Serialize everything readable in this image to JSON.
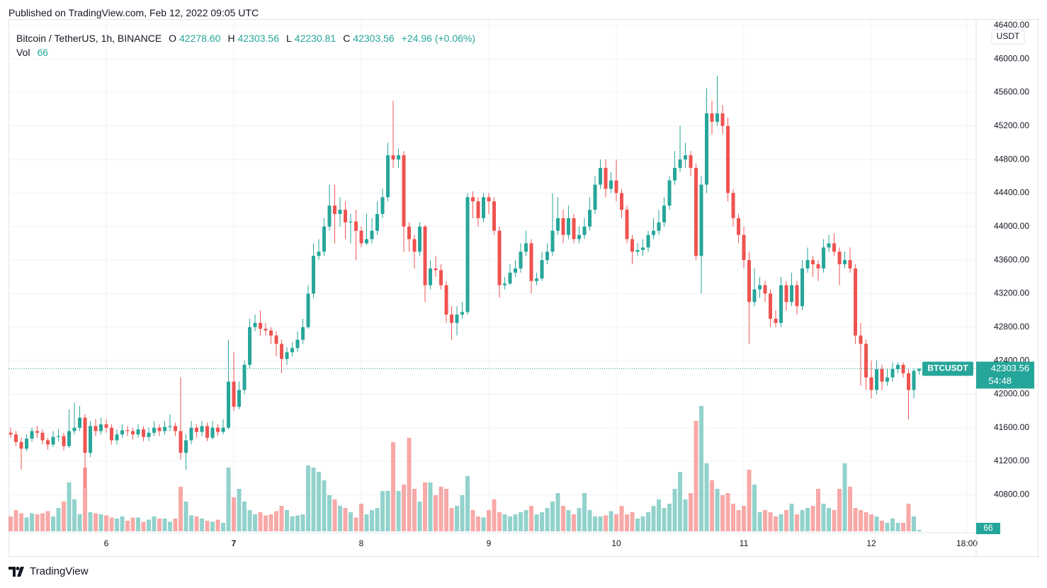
{
  "header": {
    "published": "Published on TradingView.com, Feb 12, 2022 09:05 UTC",
    "symbol": "Bitcoin / TetherUS, 1h, BINANCE",
    "open_label": "O",
    "open": "42278.60",
    "high_label": "H",
    "high": "42303.56",
    "low_label": "L",
    "low": "42230.81",
    "close_label": "C",
    "close": "42303.56",
    "change": "+24.96 (+0.06%)",
    "vol_label": "Vol",
    "vol": "66"
  },
  "footer": {
    "brand": "TradingView"
  },
  "chart_data": {
    "type": "candlestick",
    "currency": "USDT",
    "symbol_tag": "BTCUSDT",
    "countdown": "54:48",
    "up_color": "#26a69a",
    "down_color": "#ef5350",
    "grid": true,
    "open": [
      41540,
      41520,
      41430,
      41350,
      41470,
      41560,
      41540,
      41450,
      41400,
      41490,
      41500,
      41380,
      41560,
      41600,
      41720,
      41300,
      41620,
      41560,
      41640,
      41600,
      41450,
      41520,
      41570,
      41560,
      41520,
      41580,
      41490,
      41540,
      41600,
      41560,
      41610,
      41620,
      41560,
      41300,
      41450,
      41600,
      41550,
      41620,
      41480,
      41600,
      41550,
      41600,
      42150,
      41850,
      42050,
      42350,
      42800,
      42850,
      42780,
      42760,
      42700,
      42600,
      42420,
      42500,
      42550,
      42650,
      42800,
      43200,
      43650,
      43700,
      44000,
      44250,
      44150,
      44200,
      44050,
      44060,
      43950,
      43800,
      43850,
      43950,
      44150,
      44350,
      44850,
      44800,
      44850,
      44000,
      43850,
      43700,
      44000,
      43300,
      43500,
      43480,
      43300,
      42950,
      42850,
      42950,
      42980,
      44350,
      44300,
      44100,
      44350,
      44300,
      43950,
      43300,
      43320,
      43450,
      43500,
      43700,
      43800,
      43350,
      43380,
      43600,
      43700,
      43950,
      44100,
      43900,
      44100,
      43850,
      43900,
      44000,
      44200,
      44500,
      44700,
      44450,
      44550,
      44400,
      44200,
      43850,
      43700,
      43720,
      43750,
      43900,
      43950,
      44050,
      44250,
      44550,
      44700,
      44800,
      44850,
      44700,
      43650,
      44500,
      45350,
      45250,
      45350,
      45200,
      44400,
      44100,
      43900,
      43600,
      43100,
      43250,
      43300,
      43200,
      42900,
      42850,
      43300,
      43100,
      43300,
      43050,
      43500,
      43600,
      43550,
      43500,
      43750,
      43800,
      43700,
      43550,
      43600,
      43500,
      42700,
      42600,
      42200,
      42050,
      42300,
      42150,
      42200,
      42300,
      42350,
      42250,
      42050,
      42278.6
    ],
    "high": [
      41600,
      41560,
      41480,
      41520,
      41600,
      41620,
      41580,
      41480,
      41560,
      41580,
      41540,
      41820,
      41900,
      41860,
      41760,
      41680,
      41700,
      41720,
      41700,
      41640,
      41580,
      41640,
      41620,
      41600,
      41640,
      41620,
      41600,
      41680,
      41640,
      41680,
      41760,
      41660,
      42200,
      41520,
      41680,
      41640,
      41680,
      41660,
      41680,
      41640,
      41700,
      42650,
      42500,
      42150,
      42400,
      42900,
      42950,
      43000,
      42850,
      42800,
      42750,
      42650,
      42560,
      42620,
      42750,
      42900,
      43300,
      43800,
      43850,
      44100,
      44500,
      44500,
      44350,
      44300,
      44150,
      44200,
      44000,
      44150,
      44100,
      44300,
      44450,
      45000,
      45500,
      44930,
      44900,
      44050,
      43900,
      44050,
      44020,
      43600,
      43650,
      43550,
      43350,
      43050,
      43050,
      43100,
      44400,
      44420,
      44350,
      44400,
      44400,
      44350,
      44000,
      43400,
      43550,
      43600,
      43800,
      43950,
      43850,
      43450,
      43700,
      43800,
      44400,
      44350,
      44200,
      44250,
      44150,
      44000,
      44100,
      44350,
      44600,
      44800,
      44800,
      44650,
      44800,
      44450,
      44250,
      43900,
      43800,
      43850,
      43950,
      44100,
      44200,
      44350,
      44600,
      44900,
      45200,
      45000,
      44900,
      44750,
      44600,
      45650,
      45500,
      45800,
      45450,
      45300,
      44450,
      44150,
      44000,
      43700,
      43500,
      43400,
      43350,
      43250,
      43000,
      43400,
      43350,
      43450,
      43350,
      43600,
      43750,
      43650,
      43600,
      43850,
      43900,
      43920,
      43750,
      43700,
      43750,
      43550,
      42850,
      42650,
      42400,
      42400,
      42350,
      42300,
      42380,
      42380,
      42380,
      42300,
      42300,
      42303.56
    ],
    "low": [
      41480,
      41380,
      41100,
      41320,
      41430,
      41480,
      41400,
      41340,
      41370,
      41440,
      41330,
      41360,
      41520,
      41560,
      40880,
      41250,
      41500,
      41520,
      41540,
      41400,
      41400,
      41480,
      41500,
      41460,
      41480,
      41440,
      41440,
      41500,
      41500,
      41520,
      41560,
      41500,
      41220,
      41100,
      41400,
      41480,
      41500,
      41440,
      41460,
      41500,
      41520,
      41580,
      41800,
      41820,
      42000,
      42300,
      42750,
      42700,
      42700,
      42600,
      42450,
      42250,
      42350,
      42450,
      42500,
      42600,
      42780,
      43150,
      43600,
      43650,
      43950,
      43800,
      44000,
      43850,
      43800,
      43600,
      43750,
      43780,
      43800,
      43900,
      44100,
      44300,
      44700,
      44700,
      43700,
      43700,
      43500,
      43650,
      43100,
      43250,
      43400,
      43250,
      42850,
      42650,
      42700,
      42900,
      42950,
      44100,
      44000,
      44050,
      44150,
      43900,
      43150,
      43250,
      43300,
      43400,
      43450,
      43650,
      43200,
      43300,
      43350,
      43550,
      43650,
      43900,
      43800,
      43850,
      43800,
      43800,
      43850,
      43950,
      44150,
      44450,
      44350,
      44400,
      44300,
      44100,
      43800,
      43550,
      43650,
      43650,
      43700,
      43850,
      43900,
      44000,
      44200,
      44500,
      44650,
      44700,
      44600,
      43600,
      43200,
      44400,
      45100,
      45200,
      45100,
      44300,
      44000,
      43800,
      43500,
      42600,
      43050,
      43150,
      43100,
      42800,
      42800,
      42800,
      43000,
      43050,
      42950,
      43000,
      43450,
      43400,
      43350,
      43450,
      43700,
      43650,
      43300,
      43500,
      43450,
      42600,
      42100,
      42050,
      41950,
      42000,
      42050,
      42100,
      42150,
      42250,
      42200,
      41700,
      41950,
      42230.81
    ],
    "close": [
      41520,
      41430,
      41350,
      41470,
      41560,
      41540,
      41450,
      41400,
      41490,
      41500,
      41380,
      41560,
      41600,
      41720,
      41300,
      41620,
      41560,
      41640,
      41600,
      41450,
      41520,
      41570,
      41560,
      41520,
      41580,
      41490,
      41540,
      41600,
      41560,
      41610,
      41620,
      41560,
      41300,
      41450,
      41600,
      41550,
      41620,
      41480,
      41600,
      41550,
      41600,
      42150,
      41850,
      42050,
      42350,
      42800,
      42850,
      42780,
      42760,
      42700,
      42600,
      42420,
      42500,
      42550,
      42650,
      42800,
      43200,
      43650,
      43700,
      44000,
      44250,
      44150,
      44200,
      44050,
      44060,
      43950,
      43800,
      43850,
      43950,
      44150,
      44350,
      44850,
      44800,
      44850,
      44000,
      43850,
      43700,
      44000,
      43300,
      43500,
      43480,
      43300,
      42950,
      42850,
      42950,
      42980,
      44350,
      44300,
      44100,
      44350,
      44300,
      43950,
      43300,
      43320,
      43450,
      43500,
      43700,
      43800,
      43350,
      43380,
      43600,
      43700,
      43950,
      44100,
      43900,
      44100,
      43850,
      43900,
      44000,
      44200,
      44500,
      44700,
      44450,
      44550,
      44400,
      44200,
      43850,
      43700,
      43720,
      43750,
      43900,
      43950,
      44050,
      44250,
      44550,
      44700,
      44800,
      44850,
      44700,
      43650,
      44500,
      45350,
      45250,
      45350,
      45200,
      44400,
      44100,
      43900,
      43600,
      43100,
      43250,
      43300,
      43200,
      42900,
      42850,
      43300,
      43100,
      43300,
      43050,
      43500,
      43600,
      43550,
      43500,
      43750,
      43800,
      43700,
      43550,
      43600,
      43500,
      42700,
      42600,
      42200,
      42050,
      42300,
      42150,
      42200,
      42300,
      42350,
      42250,
      42050,
      42278.6,
      42303.56
    ],
    "volume": [
      700,
      1000,
      850,
      650,
      850,
      800,
      850,
      950,
      700,
      1100,
      1400,
      2300,
      1500,
      800,
      3000,
      900,
      850,
      800,
      750,
      650,
      600,
      700,
      500,
      650,
      650,
      450,
      550,
      700,
      600,
      600,
      450,
      600,
      2100,
      1400,
      750,
      700,
      600,
      500,
      450,
      550,
      400,
      3000,
      1600,
      2000,
      1400,
      1000,
      800,
      900,
      750,
      800,
      950,
      1200,
      1000,
      700,
      750,
      800,
      3100,
      3000,
      2800,
      2400,
      1700,
      1500,
      1200,
      1100,
      900,
      650,
      1300,
      800,
      1000,
      1100,
      1900,
      1900,
      4200,
      1900,
      2200,
      4400,
      2000,
      1400,
      2300,
      2300,
      1700,
      2100,
      2000,
      1100,
      1200,
      1700,
      2600,
      1000,
      700,
      650,
      1000,
      1500,
      900,
      800,
      700,
      800,
      900,
      1000,
      1200,
      800,
      900,
      1100,
      1400,
      1800,
      1200,
      1000,
      800,
      1100,
      1800,
      1000,
      700,
      700,
      750,
      950,
      800,
      1200,
      800,
      900,
      600,
      700,
      900,
      1200,
      1500,
      1100,
      1300,
      2000,
      2800,
      1500,
      1800,
      5200,
      5900,
      3200,
      2400,
      2000,
      1700,
      1800,
      1300,
      1000,
      1200,
      2900,
      2200,
      900,
      1000,
      900,
      700,
      800,
      1000,
      1300,
      800,
      1000,
      1100,
      1200,
      2000,
      1300,
      1100,
      1000,
      2000,
      3200,
      2100,
      1100,
      1000,
      900,
      800,
      700,
      500,
      400,
      600,
      400,
      400,
      1300,
      700,
      66
    ],
    "vlim": [
      0,
      6000
    ],
    "xlim": [
      -0.27,
      181.73
    ],
    "xticks": [
      {
        "value": 18,
        "label": "6"
      },
      {
        "value": 42,
        "label": "7"
      },
      {
        "value": 66,
        "label": "8"
      },
      {
        "value": 90,
        "label": "9"
      },
      {
        "value": 114,
        "label": "10"
      },
      {
        "value": 138,
        "label": "11"
      },
      {
        "value": 162,
        "label": "12"
      },
      {
        "value": 180,
        "label": "18:00"
      }
    ],
    "ylim": [
      40347,
      46466
    ],
    "yticks": [
      {
        "value": 40800,
        "label": "40800.00"
      },
      {
        "value": 41200,
        "label": "41200.00"
      },
      {
        "value": 41600,
        "label": "41600.00"
      },
      {
        "value": 42000,
        "label": "42000.00"
      },
      {
        "value": 42400,
        "label": "42400.00"
      },
      {
        "value": 42800,
        "label": "42800.00"
      },
      {
        "value": 43200,
        "label": "43200.00"
      },
      {
        "value": 43600,
        "label": "43600.00"
      },
      {
        "value": 44000,
        "label": "44000.00"
      },
      {
        "value": 44400,
        "label": "44400.00"
      },
      {
        "value": 44800,
        "label": "44800.00"
      },
      {
        "value": 45200,
        "label": "45200.00"
      },
      {
        "value": 45600,
        "label": "45600.00"
      },
      {
        "value": 46000,
        "label": "46000.00"
      },
      {
        "value": 46400,
        "label": "46400.00"
      }
    ]
  }
}
